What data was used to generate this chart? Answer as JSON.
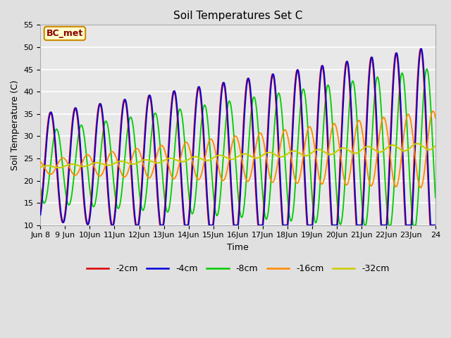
{
  "title": "Soil Temperatures Set C",
  "xlabel": "Time",
  "ylabel": "Soil Temperature (C)",
  "ylim": [
    10,
    55
  ],
  "annotation_text": "BC_met",
  "bg_color": "#e0e0e0",
  "plot_bg_color": "#e8e8e8",
  "grid_color": "white",
  "line_colors": {
    "-2cm": "#dd0000",
    "-4cm": "#0000dd",
    "-8cm": "#00cc00",
    "-16cm": "#ff8800",
    "-32cm": "#cccc00"
  },
  "legend_labels": [
    "-2cm",
    "-4cm",
    "-8cm",
    "-16cm",
    "-32cm"
  ]
}
